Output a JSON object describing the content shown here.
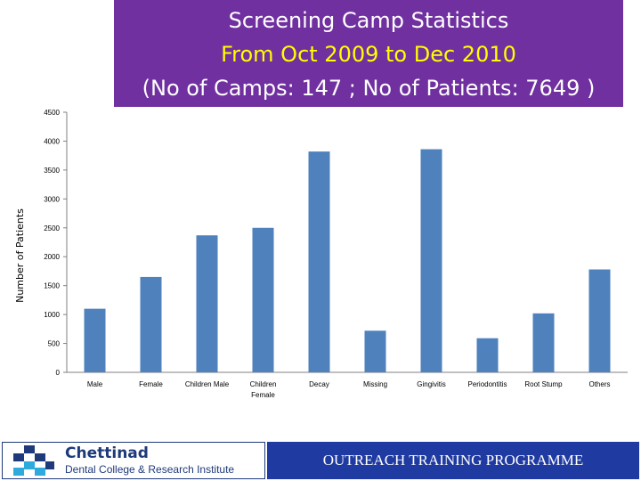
{
  "title": {
    "line1": "Screening Camp Statistics",
    "line2": "From Oct 2009 to Dec 2010",
    "line3": "(No of Camps: 147  ; No of Patients:  7649 )"
  },
  "chart_data": {
    "type": "bar",
    "categories": [
      "Male",
      "Female",
      "Children Male",
      "Children Female",
      "Decay",
      "Missing",
      "Gingivitis",
      "Periodontitis",
      "Root Stump",
      "Others"
    ],
    "category_lines": [
      [
        "Male"
      ],
      [
        "Female"
      ],
      [
        "Children Male"
      ],
      [
        "Children",
        "Female"
      ],
      [
        "Decay"
      ],
      [
        "Missing"
      ],
      [
        "Gingivitis"
      ],
      [
        "Periodontitis"
      ],
      [
        "Root Stump"
      ],
      [
        "Others"
      ]
    ],
    "values": [
      1100,
      1650,
      2370,
      2500,
      3820,
      720,
      3860,
      590,
      1020,
      1780
    ],
    "ylabel": "Number of Patients",
    "xlabel": "",
    "ylim": [
      0,
      4500
    ],
    "yticks": [
      0,
      500,
      1000,
      1500,
      2000,
      2500,
      3000,
      3500,
      4000,
      4500
    ],
    "bar_color": "#4f81bd",
    "grid": false,
    "legend": "none"
  },
  "footer": {
    "logo_name": "Chettinad",
    "logo_subtitle": "Dental College & Research Institute",
    "banner_text": "OUTREACH  TRAINING PROGRAMME",
    "logo_icon": "cross-blocks-logo",
    "banner_color": "#1f3aa0",
    "title_bg_color": "#7030a0"
  }
}
